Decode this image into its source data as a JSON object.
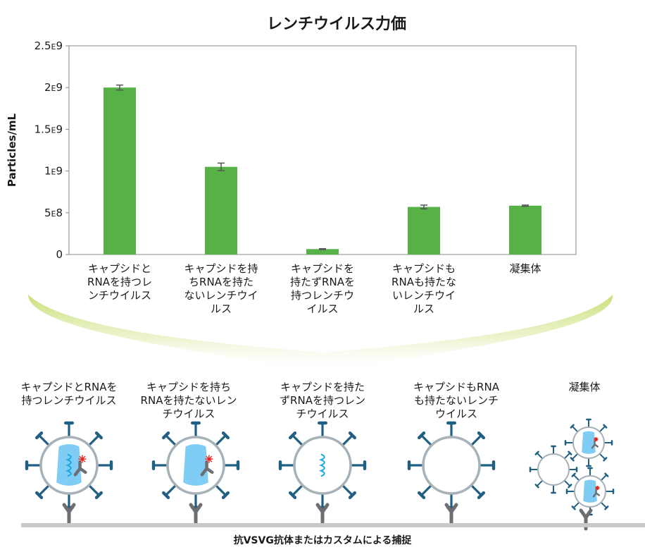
{
  "chart_data": {
    "type": "bar",
    "title": "レンチウイルス力価",
    "ylabel": "Particles/mL",
    "xlabel": "",
    "ylim": [
      0,
      2500000000
    ],
    "yticks": [
      {
        "value": 0,
        "label": "0"
      },
      {
        "value": 500000000,
        "label": "5E8"
      },
      {
        "value": 1000000000,
        "label": "1E9"
      },
      {
        "value": 1500000000,
        "label": "1.5E9"
      },
      {
        "value": 2000000000,
        "label": "2E9"
      },
      {
        "value": 2500000000,
        "label": "2.5E9"
      }
    ],
    "categories": [
      "キャプシドと\nRNAを持つレ\nンチウイルス",
      "キャプシドを持\nちRNAを持た\nないレンチウイ\nルス",
      "キャプシドを\n持たずRNAを\n持つレンチウ\nイルス",
      "キャプシドも\nRNAも持たな\nいレンチウイ\nルス",
      "凝集体"
    ],
    "values": [
      2000000000,
      1050000000,
      65000000,
      570000000,
      585000000
    ],
    "errors": [
      30000000,
      45000000,
      5000000,
      22000000,
      7000000
    ],
    "bar_color": "#56b146",
    "grid": false
  },
  "diagram": {
    "labels": [
      "キャプシドとRNAを\n持つレンチウイルス",
      "キャプシドを持ち\nRNAを持たないレン\nチウイルス",
      "キャプシドを持た\nずRNAを持つレン\nチウイルス",
      "キャプシドもRNA\nも持たないレンチ\nウイルス",
      "凝集体"
    ],
    "capture_label": "抗VSVG抗体またはカスタムによる捕捉",
    "colors": {
      "envelope": "#a7b1b8",
      "spike": "#1f5f82",
      "capsid": "#7fcdf5",
      "rna": "#1ba9e1",
      "antibody": "#6d6e71",
      "marker": "#e2231a",
      "surface": "#c9c9c9"
    }
  }
}
